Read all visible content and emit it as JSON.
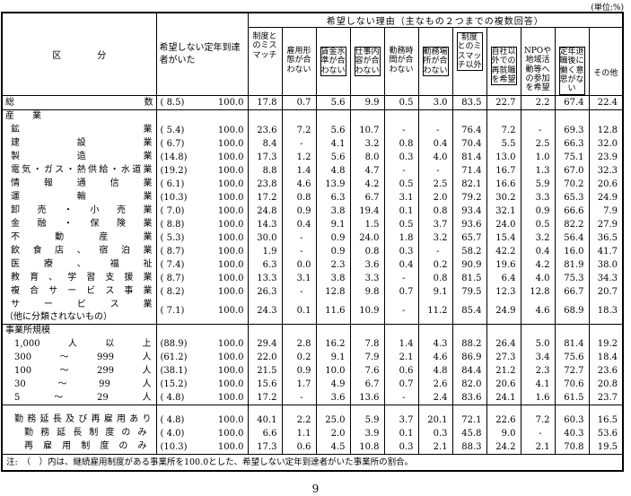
{
  "unit_label": "(単位:%)",
  "page_number": "9",
  "note": "注:　（　）内は、継続雇用制度がある事業所を100.0とした、希望しない定年到達者がいた事業所の割合。",
  "table": {
    "kubun_header": "区　　　　分",
    "col1_header": "希望しない定年到達者がいた",
    "group_header": "希望しない理由（主なもの２つまでの複数回答）",
    "reason_headers": [
      {
        "label": "制度とのミスマッチ",
        "level": "parent",
        "boxed": false
      },
      {
        "label": "雇用形態が合わない",
        "level": "sub",
        "boxed": false
      },
      {
        "label": "賃金水準が合わない",
        "level": "sub",
        "boxed": true
      },
      {
        "label": "仕事内容が合わない",
        "level": "sub",
        "boxed": true
      },
      {
        "label": "勤務時間が合わない",
        "level": "sub",
        "boxed": false
      },
      {
        "label": "勤務場所が合わない",
        "level": "sub",
        "boxed": true
      },
      {
        "label": "制度とのミスマッチ以外",
        "level": "parent",
        "boxed": true
      },
      {
        "label": "自社以外での再就職を希望",
        "level": "sub",
        "boxed": true
      },
      {
        "label": "NPOや地域活動等への参加を希望",
        "level": "sub",
        "boxed": false
      },
      {
        "label": "定年退職後に働く意思がない",
        "level": "sub",
        "boxed": true
      },
      {
        "label": "その他",
        "level": "other",
        "boxed": false
      }
    ],
    "rows": [
      {
        "label": "総数",
        "lcls": "just ind0",
        "paren": "( 8.5)",
        "total": "100.0",
        "values": [
          "17.8",
          "0.7",
          "5.6",
          "9.9",
          "0.5",
          "3.0",
          "83.5",
          "22.7",
          "2.2",
          "67.4",
          "22.4"
        ]
      },
      {
        "label": "産　　業",
        "lcls": "sec",
        "section": true,
        "sep": true
      },
      {
        "label": "鉱業",
        "lcls": "just ind1",
        "paren": "( 5.4)",
        "total": "100.0",
        "values": [
          "23.6",
          "7.2",
          "5.6",
          "10.7",
          "-",
          "-",
          "76.4",
          "7.2",
          "-",
          "69.3",
          "12.8"
        ]
      },
      {
        "label": "建設業",
        "lcls": "just ind1",
        "paren": "( 6.7)",
        "total": "100.0",
        "values": [
          "8.4",
          "-",
          "4.1",
          "3.2",
          "0.8",
          "0.4",
          "70.4",
          "5.5",
          "2.5",
          "66.3",
          "32.0"
        ]
      },
      {
        "label": "製造業",
        "lcls": "just ind1",
        "paren": "(14.8)",
        "total": "100.0",
        "values": [
          "17.3",
          "1.2",
          "5.6",
          "8.0",
          "0.3",
          "4.0",
          "81.4",
          "13.0",
          "1.0",
          "75.1",
          "23.9"
        ]
      },
      {
        "label": "電気・ガス・熱供給・水道業",
        "lcls": "just ind1",
        "paren": "(19.2)",
        "total": "100.0",
        "values": [
          "8.8",
          "1.4",
          "4.8",
          "4.7",
          "-",
          "-",
          "71.4",
          "16.7",
          "1.3",
          "67.0",
          "32.3"
        ]
      },
      {
        "label": "情報通信業",
        "lcls": "just ind1",
        "paren": "( 6.1)",
        "total": "100.0",
        "values": [
          "23.8",
          "4.6",
          "13.9",
          "4.2",
          "0.5",
          "2.5",
          "82.1",
          "16.6",
          "5.9",
          "70.2",
          "20.6"
        ]
      },
      {
        "label": "運輸業",
        "lcls": "just ind1",
        "paren": "(10.3)",
        "total": "100.0",
        "values": [
          "17.2",
          "0.8",
          "6.3",
          "6.7",
          "3.1",
          "2.0",
          "79.2",
          "30.2",
          "3.3",
          "65.3",
          "24.9"
        ]
      },
      {
        "label": "卸売・小売業",
        "lcls": "just ind1",
        "paren": "( 7.0)",
        "total": "100.0",
        "values": [
          "24.8",
          "0.9",
          "3.8",
          "19.4",
          "0.1",
          "0.8",
          "93.4",
          "32.1",
          "0.9",
          "66.6",
          "7.9"
        ]
      },
      {
        "label": "金融・保険業",
        "lcls": "just ind1",
        "paren": "( 8.8)",
        "total": "100.0",
        "values": [
          "14.3",
          "0.4",
          "9.1",
          "1.5",
          "0.5",
          "3.7",
          "93.6",
          "24.0",
          "0.5",
          "82.2",
          "27.9"
        ]
      },
      {
        "label": "不動産業",
        "lcls": "just ind1",
        "paren": "( 5.3)",
        "total": "100.0",
        "values": [
          "30.0",
          "-",
          "0.9",
          "24.0",
          "1.8",
          "3.2",
          "65.7",
          "15.4",
          "3.2",
          "56.4",
          "36.5"
        ]
      },
      {
        "label": "飲食店、宿泊業",
        "lcls": "just ind1",
        "paren": "( 8.7)",
        "total": "100.0",
        "values": [
          "1.9",
          "-",
          "0.9",
          "0.8",
          "0.3",
          "-",
          "58.2",
          "42.2",
          "0.4",
          "16.0",
          "41.7"
        ]
      },
      {
        "label": "医療、福祉",
        "lcls": "just ind1",
        "paren": "( 7.4)",
        "total": "100.0",
        "values": [
          "6.3",
          "0.0",
          "2.3",
          "3.6",
          "0.4",
          "0.2",
          "90.9",
          "19.6",
          "4.2",
          "81.9",
          "38.0"
        ]
      },
      {
        "label": "教育、学習支援業",
        "lcls": "just ind1",
        "paren": "( 8.7)",
        "total": "100.0",
        "values": [
          "13.3",
          "3.1",
          "3.8",
          "3.3",
          "-",
          "0.8",
          "81.5",
          "6.4",
          "4.0",
          "75.3",
          "34.3"
        ]
      },
      {
        "label": "複合サービス事業",
        "lcls": "just ind1",
        "paren": "( 8.2)",
        "total": "100.0",
        "values": [
          "26.3",
          "-",
          "12.8",
          "9.8",
          "0.7",
          "9.1",
          "79.5",
          "12.3",
          "12.8",
          "66.7",
          "20.7"
        ]
      },
      {
        "label": "サービス業",
        "label2": "（他に分類されないもの）",
        "lcls": "just ind1",
        "tall": true,
        "paren": "( 7.1)",
        "total": "100.0",
        "values": [
          "24.3",
          "0.1",
          "11.6",
          "10.9",
          "-",
          "11.2",
          "85.4",
          "24.9",
          "4.6",
          "68.9",
          "18.3"
        ]
      },
      {
        "label": "事業所規模",
        "lcls": "sec",
        "section": true,
        "sep": true
      },
      {
        "label": "1,000人以上",
        "lcls": "just ind2",
        "paren": "(88.9)",
        "total": "100.0",
        "values": [
          "29.4",
          "2.8",
          "16.2",
          "7.8",
          "1.4",
          "4.3",
          "88.2",
          "26.4",
          "5.0",
          "81.4",
          "19.2"
        ]
      },
      {
        "label": "300～999人",
        "lcls": "just ind2",
        "paren": "(61.2)",
        "total": "100.0",
        "values": [
          "22.0",
          "0.2",
          "9.1",
          "7.9",
          "2.1",
          "4.6",
          "86.9",
          "27.3",
          "3.4",
          "75.6",
          "18.4"
        ]
      },
      {
        "label": "100～299人",
        "lcls": "just ind2",
        "paren": "(38.1)",
        "total": "100.0",
        "values": [
          "21.5",
          "0.9",
          "10.0",
          "7.6",
          "0.6",
          "4.8",
          "84.4",
          "21.2",
          "2.3",
          "72.7",
          "23.6"
        ]
      },
      {
        "label": "30～99人",
        "lcls": "just ind2",
        "paren": "(15.2)",
        "total": "100.0",
        "values": [
          "15.6",
          "1.7",
          "4.9",
          "6.7",
          "0.7",
          "2.6",
          "82.0",
          "20.6",
          "4.1",
          "70.6",
          "20.8"
        ]
      },
      {
        "label": "5～29人",
        "lcls": "just ind2",
        "paren": "( 4.8)",
        "total": "100.0",
        "values": [
          "17.2",
          "-",
          "3.6",
          "13.6",
          "-",
          "2.4",
          "83.6",
          "24.1",
          "1.6",
          "61.5",
          "23.7"
        ]
      },
      {
        "blank": true,
        "sep": true
      },
      {
        "label": "勤務延長及び再雇用あり",
        "lcls": "just ind2",
        "paren": "( 4.8)",
        "total": "100.0",
        "values": [
          "40.1",
          "2.2",
          "25.0",
          "5.9",
          "3.7",
          "20.1",
          "72.1",
          "22.6",
          "7.2",
          "60.3",
          "16.5"
        ]
      },
      {
        "label": "勤務延長制度のみ",
        "lcls": "just ind3",
        "paren": "( 4.0)",
        "total": "100.0",
        "values": [
          "6.6",
          "1.1",
          "2.0",
          "3.9",
          "0.1",
          "0.3",
          "45.8",
          "9.0",
          "-",
          "40.3",
          "53.6"
        ]
      },
      {
        "label": "再雇用制度のみ",
        "lcls": "just ind3",
        "paren": "(10.3)",
        "total": "100.0",
        "values": [
          "17.3",
          "0.6",
          "4.5",
          "10.8",
          "0.3",
          "2.1",
          "88.3",
          "24.2",
          "2.1",
          "70.8",
          "19.5"
        ]
      }
    ]
  }
}
